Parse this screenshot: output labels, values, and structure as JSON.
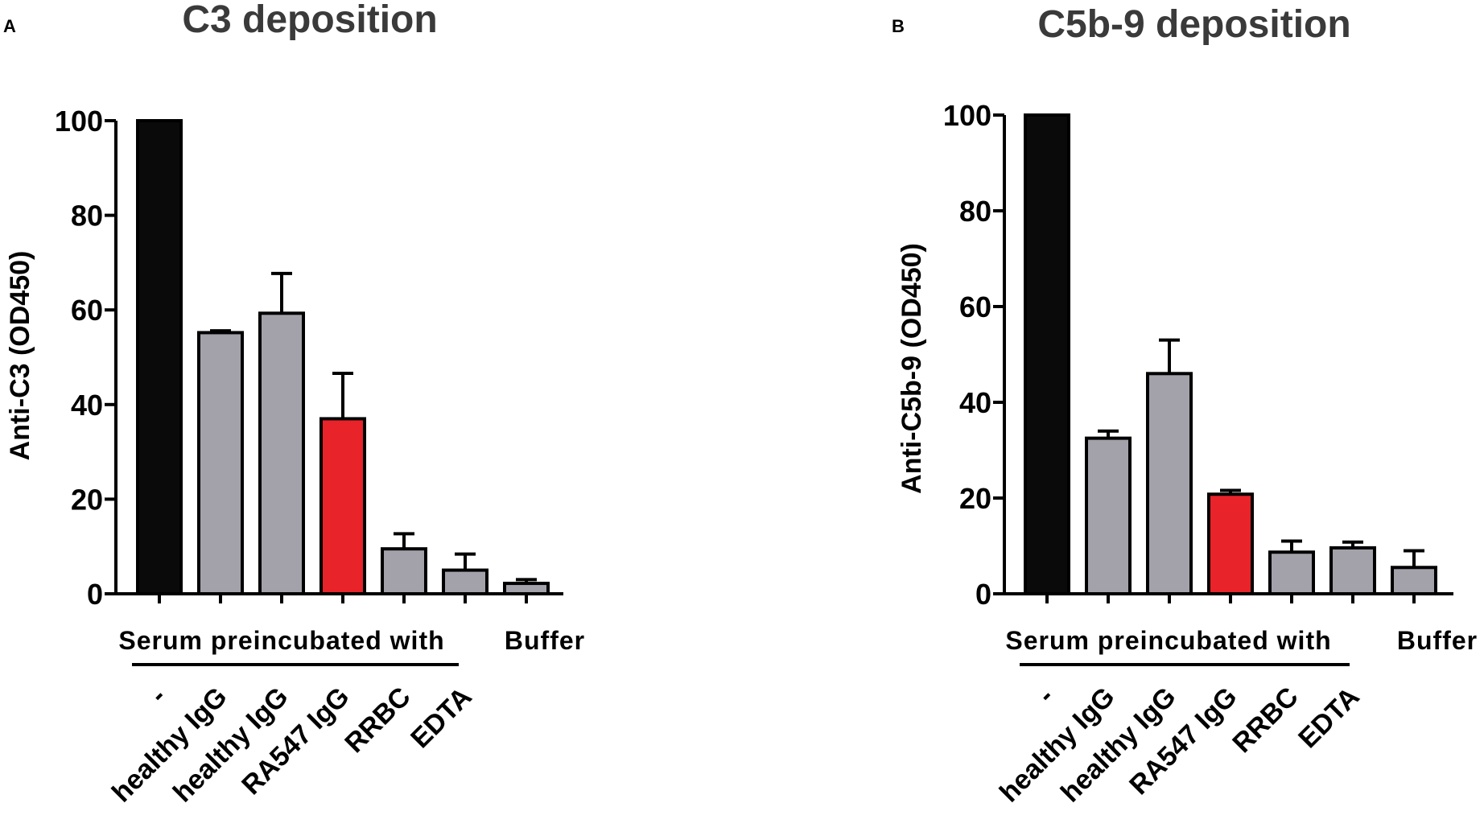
{
  "colors": {
    "control": "#0a0a0a",
    "gray": "#a3a2aa",
    "highlight": "#e8232a"
  },
  "chart_data": [
    {
      "panel": "A",
      "type": "bar",
      "title": "C3 deposition",
      "ylabel": "Anti-C3 (OD450)",
      "ylim": [
        0,
        100
      ],
      "yticks": [
        "0",
        "20",
        "40",
        "60",
        "80",
        "100"
      ],
      "categories": [
        "-",
        "healthy IgG",
        "healthy IgG",
        "RA547 IgG",
        "RRBC",
        "EDTA",
        ""
      ],
      "values": [
        100,
        55.2,
        59.3,
        37.0,
        9.5,
        5.0,
        2.2
      ],
      "errors": [
        0,
        0.4,
        8.4,
        9.6,
        3.2,
        3.4,
        0.8
      ],
      "bar_colors": [
        "control",
        "gray",
        "gray",
        "highlight",
        "gray",
        "gray",
        "gray"
      ],
      "group_label": "Serum preincubated with",
      "buffer_label": "Buffer"
    },
    {
      "panel": "B",
      "type": "bar",
      "title": "C5b-9 deposition",
      "ylabel": "Anti-C5b-9 (OD450)",
      "ylim": [
        0,
        100
      ],
      "yticks": [
        "0",
        "20",
        "40",
        "60",
        "80",
        "100"
      ],
      "categories": [
        "-",
        "healthy IgG",
        "healthy IgG",
        "RA547 IgG",
        "RRBC",
        "EDTA",
        ""
      ],
      "values": [
        100,
        32.5,
        46.0,
        20.8,
        8.7,
        9.6,
        5.5
      ],
      "errors": [
        0,
        1.5,
        7.0,
        0.8,
        2.3,
        1.2,
        3.5
      ],
      "bar_colors": [
        "control",
        "gray",
        "gray",
        "highlight",
        "gray",
        "gray",
        "gray"
      ],
      "group_label": "Serum preincubated with",
      "buffer_label": "Buffer"
    }
  ]
}
